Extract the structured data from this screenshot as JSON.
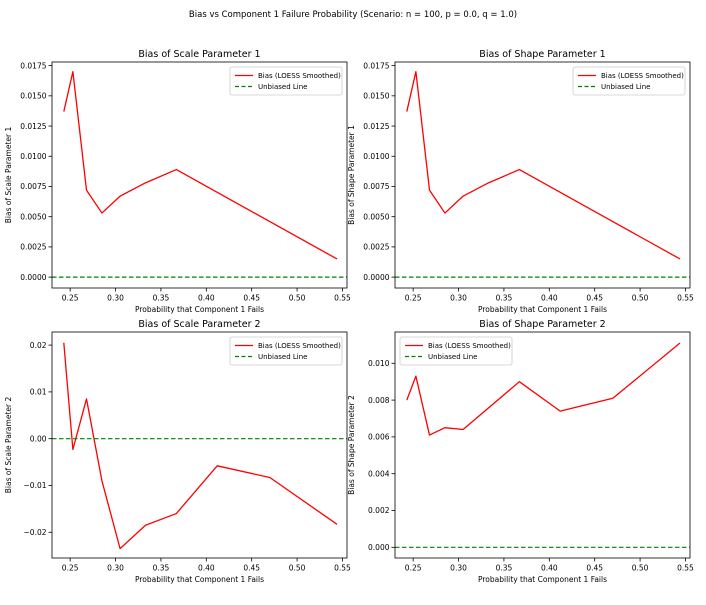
{
  "figure": {
    "suptitle": "Bias vs Component 1 Failure Probability (Scenario: n = 100, p = 0.0, q = 1.0)"
  },
  "chart_data": [
    {
      "type": "line",
      "title": "Bias of Scale Parameter 1",
      "xlabel": "Probability that Component 1 Fails",
      "ylabel": "Bias of Scale Parameter 1",
      "xlim": [
        0.23,
        0.555
      ],
      "ylim": [
        -0.0009,
        0.0178
      ],
      "xticks": [
        0.25,
        0.3,
        0.35,
        0.4,
        0.45,
        0.5,
        0.55
      ],
      "xticklabels": [
        "0.25",
        "0.30",
        "0.35",
        "0.40",
        "0.45",
        "0.50",
        "0.55"
      ],
      "yticks": [
        0.0,
        0.0025,
        0.005,
        0.0075,
        0.01,
        0.0125,
        0.015,
        0.0175
      ],
      "yticklabels": [
        "0.0000",
        "0.0025",
        "0.0050",
        "0.0075",
        "0.0100",
        "0.0125",
        "0.0150",
        "0.0175"
      ],
      "legend_position": "upper right",
      "series": [
        {
          "name": "Bias (LOESS Smoothed)",
          "color": "#ff0000",
          "style": "solid",
          "x": [
            0.243,
            0.253,
            0.268,
            0.285,
            0.305,
            0.333,
            0.367,
            0.544
          ],
          "y": [
            0.0137,
            0.017,
            0.0072,
            0.0053,
            0.0067,
            0.0078,
            0.0089,
            0.0015
          ]
        },
        {
          "name": "Unbiased Line",
          "color": "#008000",
          "style": "dashed",
          "hline": 0.0
        }
      ]
    },
    {
      "type": "line",
      "title": "Bias of Shape Parameter 1",
      "xlabel": "Probability that Component 1 Fails",
      "ylabel": "Bias of Shape Parameter 1",
      "xlim": [
        0.23,
        0.555
      ],
      "ylim": [
        -0.0009,
        0.0178
      ],
      "xticks": [
        0.25,
        0.3,
        0.35,
        0.4,
        0.45,
        0.5,
        0.55
      ],
      "xticklabels": [
        "0.25",
        "0.30",
        "0.35",
        "0.40",
        "0.45",
        "0.50",
        "0.55"
      ],
      "yticks": [
        0.0,
        0.0025,
        0.005,
        0.0075,
        0.01,
        0.0125,
        0.015,
        0.0175
      ],
      "yticklabels": [
        "0.0000",
        "0.0025",
        "0.0050",
        "0.0075",
        "0.0100",
        "0.0125",
        "0.0150",
        "0.0175"
      ],
      "legend_position": "upper right",
      "series": [
        {
          "name": "Bias (LOESS Smoothed)",
          "color": "#ff0000",
          "style": "solid",
          "x": [
            0.243,
            0.253,
            0.268,
            0.285,
            0.305,
            0.333,
            0.367,
            0.544
          ],
          "y": [
            0.0137,
            0.017,
            0.0072,
            0.0053,
            0.0067,
            0.0078,
            0.0089,
            0.0015
          ]
        },
        {
          "name": "Unbiased Line",
          "color": "#008000",
          "style": "dashed",
          "hline": 0.0
        }
      ]
    },
    {
      "type": "line",
      "title": "Bias of Scale Parameter 2",
      "xlabel": "Probability that Component 1 Fails",
      "ylabel": "Bias of Scale Parameter 2",
      "xlim": [
        0.23,
        0.555
      ],
      "ylim": [
        -0.0255,
        0.0228
      ],
      "xticks": [
        0.25,
        0.3,
        0.35,
        0.4,
        0.45,
        0.5,
        0.55
      ],
      "xticklabels": [
        "0.25",
        "0.30",
        "0.35",
        "0.40",
        "0.45",
        "0.50",
        "0.55"
      ],
      "yticks": [
        -0.02,
        -0.01,
        0.0,
        0.01,
        0.02
      ],
      "yticklabels": [
        "−0.02",
        "−0.01",
        "0.00",
        "0.01",
        "0.02"
      ],
      "legend_position": "upper right",
      "series": [
        {
          "name": "Bias (LOESS Smoothed)",
          "color": "#ff0000",
          "style": "solid",
          "x": [
            0.243,
            0.253,
            0.268,
            0.285,
            0.305,
            0.333,
            0.367,
            0.412,
            0.47,
            0.544
          ],
          "y": [
            0.0205,
            -0.0023,
            0.0085,
            -0.009,
            -0.0235,
            -0.0185,
            -0.016,
            -0.0058,
            -0.0083,
            -0.0183
          ]
        },
        {
          "name": "Unbiased Line",
          "color": "#008000",
          "style": "dashed",
          "hline": 0.0
        }
      ]
    },
    {
      "type": "line",
      "title": "Bias of Shape Parameter 2",
      "xlabel": "Probability that Component 1 Fails",
      "ylabel": "Bias of Shape Parameter 2",
      "xlim": [
        0.23,
        0.555
      ],
      "ylim": [
        -0.00058,
        0.0117
      ],
      "xticks": [
        0.25,
        0.3,
        0.35,
        0.4,
        0.45,
        0.5,
        0.55
      ],
      "xticklabels": [
        "0.25",
        "0.30",
        "0.35",
        "0.40",
        "0.45",
        "0.50",
        "0.55"
      ],
      "yticks": [
        0.0,
        0.002,
        0.004,
        0.006,
        0.008,
        0.01
      ],
      "yticklabels": [
        "0.000",
        "0.002",
        "0.004",
        "0.006",
        "0.008",
        "0.010"
      ],
      "legend_position": "upper left",
      "series": [
        {
          "name": "Bias (LOESS Smoothed)",
          "color": "#ff0000",
          "style": "solid",
          "x": [
            0.243,
            0.253,
            0.268,
            0.285,
            0.305,
            0.367,
            0.412,
            0.47,
            0.544
          ],
          "y": [
            0.008,
            0.0093,
            0.0061,
            0.0065,
            0.0064,
            0.009,
            0.0074,
            0.0081,
            0.0111
          ]
        },
        {
          "name": "Unbiased Line",
          "color": "#008000",
          "style": "dashed",
          "hline": 0.0
        }
      ]
    }
  ]
}
